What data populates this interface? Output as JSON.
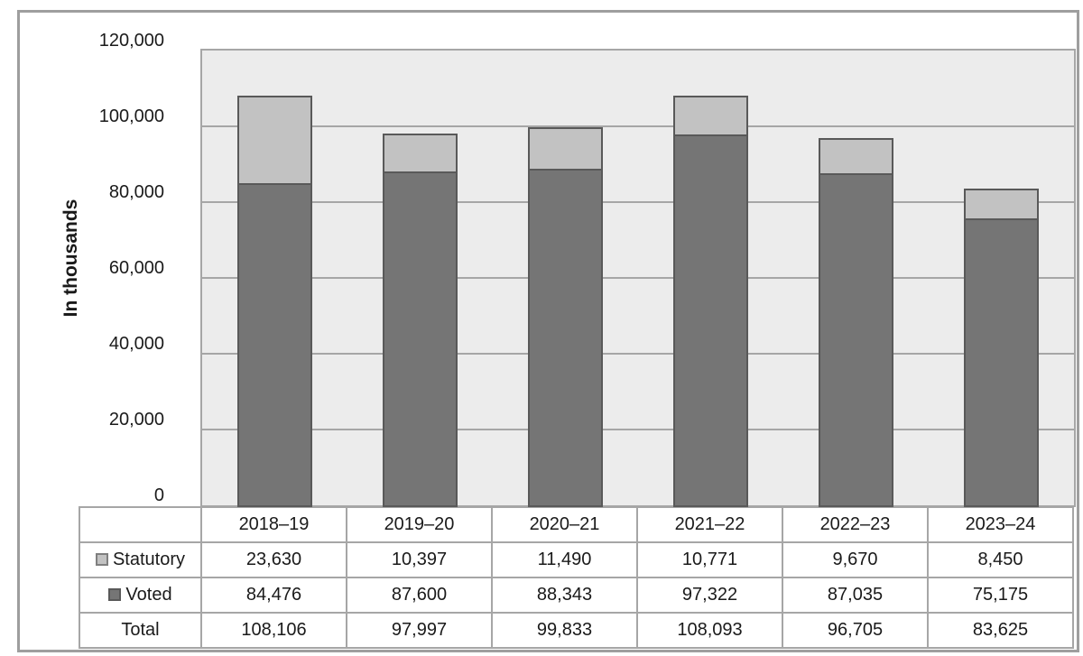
{
  "chart_data": {
    "type": "bar",
    "stacked": true,
    "title": "",
    "ylabel": "In thousands",
    "xlabel": "",
    "categories": [
      "2018–19",
      "2019–20",
      "2020–21",
      "2021–22",
      "2022–23",
      "2023–24"
    ],
    "series": [
      {
        "name": "Statutory",
        "values": [
          23630,
          10397,
          11490,
          10771,
          9670,
          8450
        ],
        "color": "#c2c2c2",
        "border_color": "#595959",
        "swatch_border": "#7f7f7f"
      },
      {
        "name": "Voted",
        "values": [
          84476,
          87600,
          88343,
          97322,
          87035,
          75175
        ],
        "color": "#757575",
        "border_color": "#595959",
        "swatch_border": "#595959"
      }
    ],
    "stack_order_bottom_to_top": [
      "Voted",
      "Statutory"
    ],
    "totals": [
      108106,
      97997,
      99833,
      108093,
      96705,
      83625
    ],
    "ylim": [
      0,
      120000
    ],
    "ytick_step": 20000,
    "ytick_labels": [
      "0",
      "20,000",
      "40,000",
      "60,000",
      "80,000",
      "100,000",
      "120,000"
    ],
    "grid": "horizontal",
    "legend_position": "data-table-below-chart",
    "plot_bg_color": "#ececec",
    "grid_color": "#a6a6a6"
  },
  "table": {
    "column_headers": [
      "2018–19",
      "2019–20",
      "2020–21",
      "2021–22",
      "2022–23",
      "2023–24"
    ],
    "rows": [
      {
        "label": "Statutory",
        "has_swatch": true,
        "swatch_color": "#c2c2c2",
        "swatch_border": "#7f7f7f",
        "values": [
          "23,630",
          "10,397",
          "11,490",
          "10,771",
          "9,670",
          "8,450"
        ]
      },
      {
        "label": "Voted",
        "has_swatch": true,
        "swatch_color": "#757575",
        "swatch_border": "#595959",
        "values": [
          "84,476",
          "87,600",
          "88,343",
          "97,322",
          "87,035",
          "75,175"
        ]
      },
      {
        "label": "Total",
        "has_swatch": false,
        "swatch_color": null,
        "swatch_border": null,
        "values": [
          "108,106",
          "97,997",
          "99,833",
          "108,093",
          "96,705",
          "83,625"
        ]
      }
    ]
  }
}
